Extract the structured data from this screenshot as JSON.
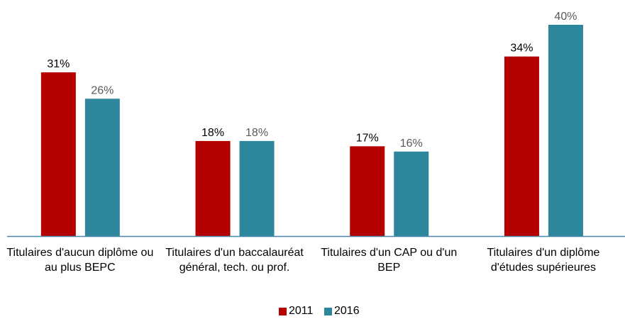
{
  "chart_data": {
    "type": "bar",
    "categories": [
      "Titulaires d'aucun diplôme ou au plus BEPC",
      "Titulaires d'un baccalauréat général, tech. ou prof.",
      "Titulaires d'un CAP ou d'un BEP",
      "Titulaires d'un diplôme d'études supérieures"
    ],
    "series": [
      {
        "name": "2011",
        "color": "#b50000",
        "values": [
          31,
          18,
          17,
          34
        ],
        "value_labels": [
          "31%",
          "18%",
          "17%",
          "34%"
        ]
      },
      {
        "name": "2016",
        "color": "#2e869c",
        "values": [
          26,
          18,
          16,
          40
        ],
        "value_labels": [
          "26%",
          "18%",
          "16%",
          "40%"
        ]
      }
    ]
  }
}
